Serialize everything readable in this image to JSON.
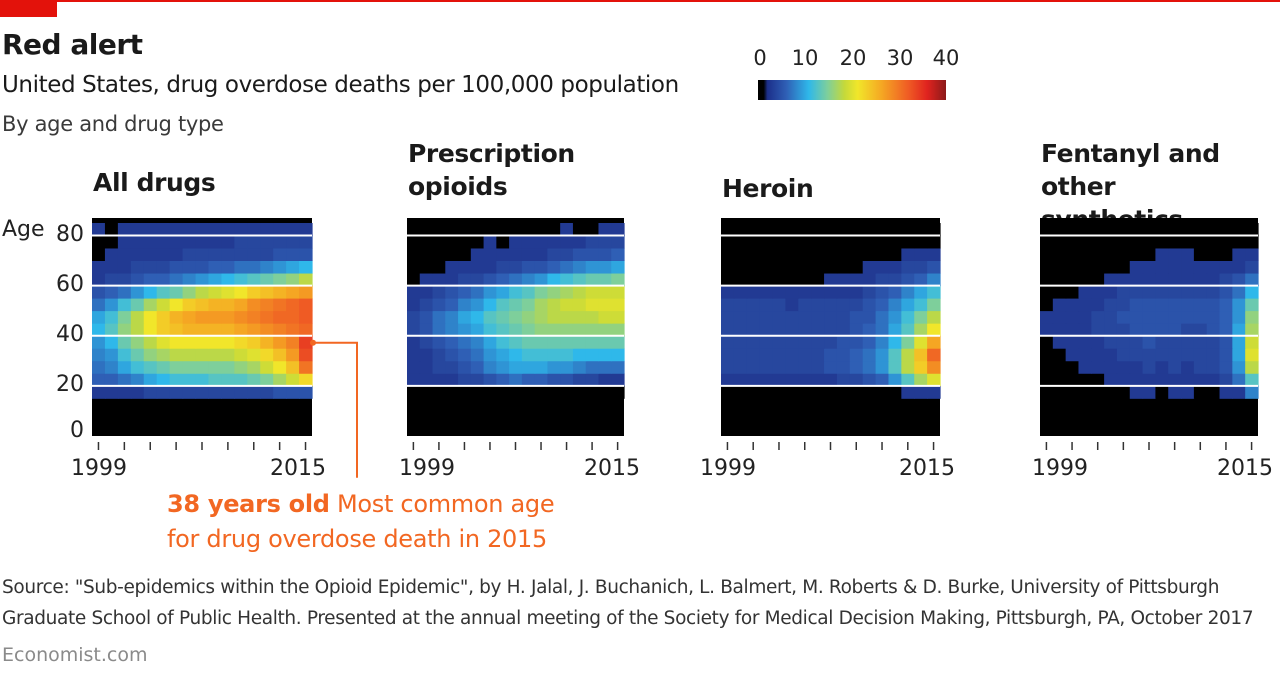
{
  "header": {
    "title": "Red alert",
    "subtitle": "United States, drug overdose deaths per 100,000 population",
    "subsubtitle": "By age and drug type"
  },
  "legend": {
    "ticks": [
      "0",
      "10",
      "20",
      "30",
      "40"
    ],
    "min": 0,
    "max": 40
  },
  "colors": {
    "brand_red": "#e3120b",
    "annotation": "#f26722",
    "no_data": "#000000",
    "gridline": "#ffffff"
  },
  "annotation": {
    "bold": "38 years old",
    "text_line1": " Most common age",
    "text_line2": "for drug overdose death in 2015",
    "age": 38,
    "year": 2015
  },
  "footer": {
    "source_line1": "Source: \"Sub-epidemics within the Opioid Epidemic\", by H. Jalal, J. Buchanich, L. Balmert, M. Roberts & D. Burke, University of Pittsburgh",
    "source_line2": "Graduate School of Public Health. Presented at the annual meeting of the Society for Medical Decision Making, Pittsburgh, PA, October 2017",
    "brand": "Economist.com"
  },
  "chart_data": {
    "type": "heatmap",
    "title": "Red alert",
    "subtitle": "United States, drug overdose deaths per 100,000 population",
    "colorbar": {
      "label": "deaths per 100,000",
      "range": [
        0,
        40
      ],
      "ticks": [
        0,
        10,
        20,
        30,
        40
      ]
    },
    "x": [
      1999,
      2000,
      2001,
      2002,
      2003,
      2004,
      2005,
      2006,
      2007,
      2008,
      2009,
      2010,
      2011,
      2012,
      2013,
      2014,
      2015
    ],
    "xticks": [
      1999,
      2001,
      2003,
      2005,
      2007,
      2009,
      2011,
      2013,
      2015
    ],
    "xtick_labels": [
      "1999",
      "2015"
    ],
    "ylabel": "Age",
    "yticks": [
      0,
      20,
      40,
      60,
      80
    ],
    "ylim": [
      0,
      87
    ],
    "age_bins": [
      15,
      20,
      25,
      30,
      35,
      40,
      45,
      50,
      55,
      60,
      65,
      70,
      75,
      80,
      85
    ],
    "grid": "horizontal white lines at 20, 40, 60, 80",
    "panels": [
      {
        "name": "All drugs",
        "values_by_age_bin_low_to_high": [
          [
            3,
            3,
            3,
            3,
            4,
            4,
            4,
            4,
            4,
            4,
            4,
            4,
            4,
            4,
            5,
            5,
            5
          ],
          [
            6,
            6,
            7,
            8,
            10,
            11,
            12,
            12,
            12,
            13,
            13,
            13,
            14,
            15,
            17,
            19,
            22
          ],
          [
            7,
            8,
            10,
            12,
            13,
            14,
            15,
            15,
            15,
            15,
            15,
            16,
            17,
            19,
            21,
            24,
            30
          ],
          [
            8,
            9,
            12,
            14,
            16,
            17,
            18,
            18,
            18,
            18,
            18,
            19,
            20,
            22,
            24,
            27,
            33
          ],
          [
            9,
            11,
            14,
            16,
            18,
            20,
            21,
            21,
            21,
            21,
            21,
            22,
            23,
            25,
            27,
            29,
            34
          ],
          [
            11,
            13,
            16,
            18,
            21,
            23,
            24,
            25,
            25,
            25,
            25,
            26,
            27,
            28,
            29,
            30,
            31
          ],
          [
            10,
            12,
            15,
            18,
            21,
            23,
            25,
            26,
            27,
            27,
            27,
            28,
            29,
            30,
            31,
            31,
            32
          ],
          [
            7,
            9,
            12,
            14,
            17,
            19,
            21,
            23,
            24,
            25,
            25,
            26,
            28,
            29,
            30,
            31,
            32
          ],
          [
            5,
            6,
            7,
            9,
            11,
            13,
            14,
            16,
            18,
            19,
            20,
            21,
            23,
            24,
            25,
            26,
            27
          ],
          [
            3,
            4,
            4,
            5,
            6,
            6,
            7,
            8,
            9,
            10,
            11,
            12,
            13,
            14,
            15,
            16,
            18
          ],
          [
            3,
            3,
            3,
            4,
            4,
            4,
            5,
            5,
            5,
            6,
            6,
            7,
            7,
            8,
            9,
            10,
            11
          ],
          [
            0,
            3,
            3,
            3,
            3,
            3,
            3,
            4,
            4,
            4,
            4,
            4,
            4,
            4,
            5,
            5,
            5
          ],
          [
            0,
            0,
            3,
            3,
            3,
            3,
            3,
            3,
            3,
            3,
            3,
            4,
            4,
            4,
            4,
            4,
            4
          ],
          [
            3,
            0,
            3,
            3,
            3,
            3,
            3,
            3,
            3,
            3,
            3,
            3,
            3,
            3,
            3,
            3,
            3
          ]
        ]
      },
      {
        "name": "Prescription opioids",
        "values_by_age_bin_low_to_high": [
          [
            0,
            0,
            0,
            0,
            0,
            0,
            0,
            0,
            0,
            0,
            0,
            0,
            0,
            0,
            0,
            0,
            0
          ],
          [
            3,
            3,
            3,
            3,
            4,
            4,
            5,
            6,
            7,
            6,
            6,
            5,
            5,
            4,
            4,
            3,
            3
          ],
          [
            3,
            3,
            4,
            4,
            5,
            6,
            8,
            9,
            10,
            10,
            10,
            9,
            9,
            8,
            7,
            7,
            7
          ],
          [
            3,
            3,
            4,
            5,
            6,
            7,
            9,
            10,
            11,
            12,
            12,
            12,
            12,
            11,
            11,
            11,
            11
          ],
          [
            3,
            4,
            5,
            6,
            7,
            8,
            10,
            12,
            13,
            14,
            14,
            14,
            14,
            14,
            14,
            14,
            14
          ],
          [
            4,
            5,
            7,
            8,
            9,
            10,
            12,
            13,
            14,
            15,
            16,
            16,
            16,
            16,
            16,
            16,
            16
          ],
          [
            4,
            5,
            7,
            8,
            10,
            11,
            13,
            14,
            15,
            16,
            17,
            18,
            18,
            18,
            18,
            19,
            19
          ],
          [
            3,
            4,
            5,
            6,
            8,
            9,
            11,
            13,
            14,
            15,
            17,
            18,
            19,
            19,
            20,
            20,
            20
          ],
          [
            3,
            3,
            4,
            5,
            6,
            7,
            9,
            10,
            12,
            13,
            15,
            16,
            17,
            18,
            19,
            19,
            19
          ],
          [
            0,
            3,
            3,
            3,
            4,
            4,
            5,
            6,
            7,
            8,
            9,
            11,
            12,
            13,
            14,
            14,
            15
          ],
          [
            0,
            0,
            0,
            3,
            3,
            3,
            3,
            4,
            4,
            5,
            5,
            6,
            7,
            8,
            9,
            9,
            10
          ],
          [
            0,
            0,
            0,
            0,
            0,
            3,
            3,
            3,
            3,
            3,
            3,
            4,
            4,
            5,
            5,
            5,
            6
          ],
          [
            0,
            0,
            0,
            0,
            0,
            0,
            3,
            0,
            3,
            3,
            3,
            3,
            3,
            3,
            4,
            4,
            4
          ],
          [
            0,
            0,
            0,
            0,
            0,
            0,
            0,
            0,
            0,
            0,
            0,
            0,
            3,
            0,
            0,
            3,
            3
          ]
        ]
      },
      {
        "name": "Heroin",
        "values_by_age_bin_low_to_high": [
          [
            0,
            0,
            0,
            0,
            0,
            0,
            0,
            0,
            0,
            0,
            0,
            0,
            0,
            0,
            3,
            3,
            3
          ],
          [
            3,
            3,
            3,
            3,
            3,
            3,
            3,
            3,
            3,
            4,
            4,
            5,
            6,
            9,
            13,
            17,
            20
          ],
          [
            4,
            4,
            4,
            4,
            4,
            4,
            4,
            4,
            5,
            5,
            6,
            7,
            9,
            13,
            18,
            23,
            28
          ],
          [
            4,
            4,
            4,
            4,
            4,
            4,
            4,
            4,
            5,
            5,
            6,
            7,
            9,
            13,
            18,
            24,
            31
          ],
          [
            4,
            4,
            4,
            4,
            4,
            4,
            4,
            4,
            4,
            5,
            5,
            6,
            8,
            11,
            15,
            20,
            26
          ],
          [
            4,
            4,
            4,
            4,
            4,
            4,
            4,
            4,
            4,
            4,
            5,
            6,
            7,
            10,
            13,
            17,
            21
          ],
          [
            4,
            4,
            4,
            4,
            4,
            4,
            4,
            4,
            4,
            4,
            5,
            5,
            7,
            9,
            12,
            15,
            18
          ],
          [
            4,
            4,
            4,
            4,
            4,
            3,
            4,
            4,
            4,
            4,
            4,
            5,
            6,
            8,
            10,
            12,
            15
          ],
          [
            3,
            3,
            3,
            3,
            3,
            3,
            3,
            3,
            3,
            3,
            3,
            4,
            5,
            6,
            8,
            10,
            12
          ],
          [
            0,
            0,
            0,
            0,
            0,
            0,
            0,
            0,
            3,
            3,
            3,
            3,
            4,
            4,
            5,
            6,
            8
          ],
          [
            0,
            0,
            0,
            0,
            0,
            0,
            0,
            0,
            0,
            0,
            0,
            3,
            3,
            3,
            4,
            4,
            5
          ],
          [
            0,
            0,
            0,
            0,
            0,
            0,
            0,
            0,
            0,
            0,
            0,
            0,
            0,
            0,
            3,
            3,
            3
          ],
          [
            0,
            0,
            0,
            0,
            0,
            0,
            0,
            0,
            0,
            0,
            0,
            0,
            0,
            0,
            0,
            0,
            0
          ],
          [
            0,
            0,
            0,
            0,
            0,
            0,
            0,
            0,
            0,
            0,
            0,
            0,
            0,
            0,
            0,
            0,
            0
          ]
        ]
      },
      {
        "name": "Fentanyl and other synthetics",
        "values_by_age_bin_low_to_high": [
          [
            0,
            0,
            0,
            0,
            0,
            0,
            0,
            3,
            3,
            0,
            3,
            3,
            0,
            0,
            3,
            3,
            8
          ],
          [
            0,
            0,
            0,
            0,
            0,
            3,
            3,
            3,
            3,
            3,
            3,
            3,
            3,
            3,
            4,
            7,
            13
          ],
          [
            0,
            0,
            0,
            3,
            3,
            3,
            3,
            3,
            4,
            3,
            4,
            3,
            4,
            4,
            5,
            9,
            18
          ],
          [
            0,
            0,
            3,
            3,
            3,
            3,
            4,
            4,
            4,
            4,
            4,
            4,
            4,
            4,
            5,
            10,
            20
          ],
          [
            0,
            3,
            3,
            3,
            3,
            4,
            4,
            4,
            5,
            4,
            4,
            4,
            4,
            4,
            5,
            10,
            19
          ],
          [
            3,
            3,
            3,
            3,
            4,
            4,
            4,
            5,
            5,
            5,
            5,
            4,
            4,
            5,
            6,
            10,
            17
          ],
          [
            3,
            3,
            3,
            3,
            4,
            4,
            5,
            5,
            5,
            5,
            5,
            5,
            5,
            5,
            6,
            9,
            16
          ],
          [
            0,
            3,
            3,
            3,
            3,
            4,
            4,
            5,
            5,
            5,
            5,
            5,
            5,
            5,
            6,
            9,
            14
          ],
          [
            0,
            0,
            0,
            3,
            3,
            3,
            4,
            4,
            4,
            4,
            4,
            4,
            4,
            4,
            5,
            7,
            11
          ],
          [
            0,
            0,
            0,
            0,
            0,
            3,
            3,
            3,
            3,
            3,
            3,
            3,
            3,
            3,
            4,
            5,
            7
          ],
          [
            0,
            0,
            0,
            0,
            0,
            0,
            0,
            3,
            3,
            3,
            3,
            3,
            3,
            3,
            3,
            3,
            4
          ],
          [
            0,
            0,
            0,
            0,
            0,
            0,
            0,
            0,
            0,
            3,
            3,
            3,
            0,
            0,
            0,
            3,
            3
          ],
          [
            0,
            0,
            0,
            0,
            0,
            0,
            0,
            0,
            0,
            0,
            0,
            0,
            0,
            0,
            0,
            0,
            0
          ],
          [
            0,
            0,
            0,
            0,
            0,
            0,
            0,
            0,
            0,
            0,
            0,
            0,
            0,
            0,
            0,
            0,
            0
          ]
        ]
      }
    ],
    "annotations": [
      {
        "text": "38 years old Most common age for drug overdose death in 2015",
        "panel": "All drugs",
        "x": 2015,
        "y": 38
      }
    ]
  }
}
